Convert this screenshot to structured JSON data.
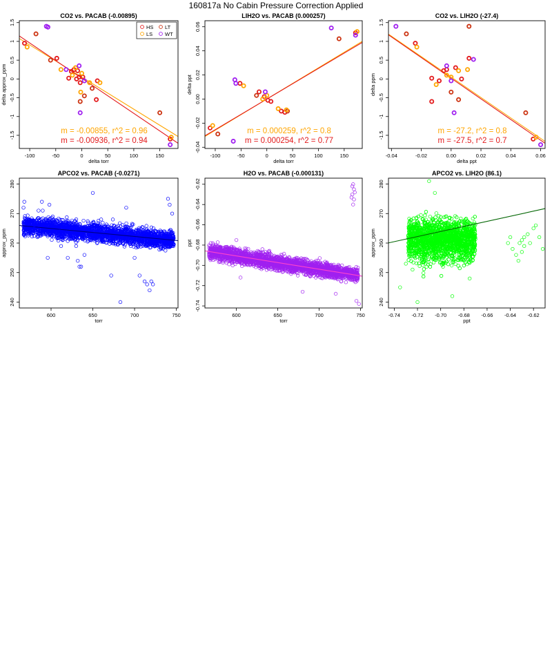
{
  "page": {
    "title": "160817a   No Cabin Pressure Correction Applied"
  },
  "legend": {
    "entries": [
      {
        "label": "HS",
        "color": "#e31a1c"
      },
      {
        "label": "LT",
        "color": "#cc3311"
      },
      {
        "label": "LS",
        "color": "#ffa500"
      },
      {
        "label": "WT",
        "color": "#a020f0"
      }
    ]
  },
  "chart_data": [
    {
      "type": "scatter",
      "title": "CO2 vs. PACAB (-0.00895)",
      "xlabel": "delta torr",
      "ylabel": "delta approx_ppm",
      "xlim": [
        -120,
        185
      ],
      "ylim": [
        -1.85,
        1.55
      ],
      "xticks": [
        -100,
        -50,
        0,
        50,
        100,
        150
      ],
      "yticks": [
        -1.5,
        -1.0,
        -0.5,
        0.0,
        0.5,
        1.0,
        1.5
      ],
      "ytick_labels": [
        "-1.5",
        "-1",
        "-0.5",
        "0",
        "0.5",
        "1",
        "1.5"
      ],
      "legend": "top-right",
      "fit_lines": [
        {
          "slope": -0.00855,
          "intercept": 0.05,
          "color": "#ffa500"
        },
        {
          "slope": -0.00936,
          "intercept": 0.02,
          "color": "#e31a1c"
        }
      ],
      "annotations": [
        {
          "text": "m = -0.00855, r^2 = 0.96",
          "color": "#ffa500"
        },
        {
          "text": "m = -0.00936, r^2 = 0.94",
          "color": "#e31a1c"
        }
      ],
      "series": [
        {
          "name": "HS",
          "color": "#e31a1c",
          "points": [
            [
              -110,
              0.95
            ],
            [
              -48,
              0.55
            ],
            [
              -20,
              0.2
            ],
            [
              -15,
              0.25
            ],
            [
              -8,
              0.22
            ],
            [
              -5,
              0.05
            ],
            [
              -10,
              0.0
            ],
            [
              2,
              0.05
            ],
            [
              30,
              -0.05
            ],
            [
              28,
              -0.55
            ],
            [
              170,
              -1.6
            ],
            [
              -25,
              0.02
            ],
            [
              -3,
              -0.1
            ]
          ]
        },
        {
          "name": "LT",
          "color": "#cc3311",
          "points": [
            [
              -88,
              1.2
            ],
            [
              -3,
              -0.6
            ],
            [
              5,
              -0.45
            ],
            [
              20,
              -0.25
            ],
            [
              150,
              -0.9
            ],
            [
              -60,
              0.5
            ]
          ]
        },
        {
          "name": "LS",
          "color": "#ffa500",
          "points": [
            [
              -105,
              0.85
            ],
            [
              -40,
              0.25
            ],
            [
              -12,
              0.3
            ],
            [
              -18,
              0.1
            ],
            [
              0,
              0.15
            ],
            [
              15,
              -0.1
            ],
            [
              35,
              -0.1
            ],
            [
              172,
              -1.55
            ],
            [
              -2,
              -0.35
            ]
          ]
        },
        {
          "name": "WT",
          "color": "#a020f0",
          "points": [
            [
              -68,
              1.4
            ],
            [
              -65,
              1.38
            ],
            [
              -5,
              0.35
            ],
            [
              -3,
              -0.9
            ],
            [
              5,
              -0.05
            ],
            [
              170,
              -1.75
            ],
            [
              -30,
              0.25
            ]
          ]
        }
      ]
    },
    {
      "type": "scatter",
      "title": "LIH2O vs. PACAB (0.000257)",
      "xlabel": "delta torr",
      "ylabel": "delta ppt",
      "xlim": [
        -120,
        185
      ],
      "ylim": [
        -0.041,
        0.065
      ],
      "xticks": [
        -100,
        -50,
        0,
        50,
        100,
        150
      ],
      "yticks": [
        -0.04,
        -0.02,
        0.0,
        0.02,
        0.04,
        0.06
      ],
      "ytick_labels": [
        "-0.04",
        "-0.02",
        "0.00",
        "0.02",
        "0.04",
        "0.06"
      ],
      "fit_lines": [
        {
          "slope": 0.000259,
          "intercept": 0.0,
          "color": "#ffa500"
        },
        {
          "slope": 0.000254,
          "intercept": 0.0,
          "color": "#e31a1c"
        }
      ],
      "annotations": [
        {
          "text": "m = 0.000259, r^2 = 0.8",
          "color": "#ffa500"
        },
        {
          "text": "m = 0.000254, r^2 = 0.77",
          "color": "#e31a1c"
        }
      ],
      "series": [
        {
          "name": "HS",
          "color": "#e31a1c",
          "points": [
            [
              -110,
              -0.024
            ],
            [
              -52,
              0.013
            ],
            [
              -15,
              0.006
            ],
            [
              -5,
              0.002
            ],
            [
              2,
              -0.001
            ],
            [
              8,
              -0.002
            ],
            [
              28,
              -0.01
            ],
            [
              35,
              -0.011
            ],
            [
              172,
              0.055
            ]
          ]
        },
        {
          "name": "LT",
          "color": "#cc3311",
          "points": [
            [
              -95,
              -0.029
            ],
            [
              -20,
              0.003
            ],
            [
              40,
              -0.01
            ],
            [
              140,
              0.05
            ]
          ]
        },
        {
          "name": "LS",
          "color": "#ffa500",
          "points": [
            [
              -105,
              -0.022
            ],
            [
              -45,
              0.011
            ],
            [
              -8,
              0.0
            ],
            [
              22,
              -0.008
            ],
            [
              38,
              -0.009
            ],
            [
              175,
              0.056
            ],
            [
              0,
              0.003
            ]
          ]
        },
        {
          "name": "WT",
          "color": "#a020f0",
          "points": [
            [
              -62,
              0.016
            ],
            [
              -60,
              0.013
            ],
            [
              -3,
              0.006
            ],
            [
              -65,
              -0.035
            ],
            [
              125,
              0.059
            ],
            [
              172,
              0.053
            ]
          ]
        }
      ]
    },
    {
      "type": "scatter",
      "title": "CO2 vs. LIH2O (-27.4)",
      "xlabel": "delta ppt",
      "ylabel": "delta ppm",
      "xlim": [
        -0.042,
        0.063
      ],
      "ylim": [
        -1.85,
        1.55
      ],
      "xticks": [
        -0.04,
        -0.02,
        0.0,
        0.02,
        0.04,
        0.06
      ],
      "xtick_labels": [
        "-0.04",
        "-0.02",
        "0.00",
        "0.02",
        "0.04",
        "0.06"
      ],
      "yticks": [
        -1.5,
        -1.0,
        -0.5,
        0.0,
        0.5,
        1.0,
        1.5
      ],
      "ytick_labels": [
        "-1.5",
        "-1",
        "-0.5",
        "0",
        "0.5",
        "1",
        "1.5"
      ],
      "fit_lines": [
        {
          "slope": -27.2,
          "intercept": 0.05,
          "color": "#ffa500"
        },
        {
          "slope": -27.5,
          "intercept": 0.02,
          "color": "#e31a1c"
        }
      ],
      "annotations": [
        {
          "text": "m = -27.2, r^2 = 0.8",
          "color": "#ffa500"
        },
        {
          "text": "m = -27.5, r^2 = 0.7",
          "color": "#e31a1c"
        }
      ],
      "series": [
        {
          "name": "HS",
          "color": "#e31a1c",
          "points": [
            [
              -0.024,
              0.95
            ],
            [
              -0.013,
              -0.6
            ],
            [
              -0.013,
              0.02
            ],
            [
              -0.005,
              0.22
            ],
            [
              -0.003,
              0.25
            ],
            [
              0.003,
              0.3
            ],
            [
              0.007,
              0.0
            ],
            [
              0.012,
              0.55
            ],
            [
              0.055,
              -1.6
            ],
            [
              -0.008,
              -0.05
            ]
          ]
        },
        {
          "name": "LT",
          "color": "#cc3311",
          "points": [
            [
              -0.03,
              1.2
            ],
            [
              0.012,
              1.4
            ],
            [
              0.0,
              -0.35
            ],
            [
              0.005,
              -0.55
            ],
            [
              0.05,
              -0.9
            ]
          ]
        },
        {
          "name": "LS",
          "color": "#ffa500",
          "points": [
            [
              -0.023,
              0.85
            ],
            [
              -0.01,
              -0.15
            ],
            [
              -0.003,
              0.1
            ],
            [
              0.005,
              0.22
            ],
            [
              0.011,
              0.25
            ],
            [
              0.057,
              -1.55
            ],
            [
              0.0,
              0.05
            ]
          ]
        },
        {
          "name": "WT",
          "color": "#a020f0",
          "points": [
            [
              -0.037,
              1.4
            ],
            [
              -0.003,
              0.35
            ],
            [
              0.002,
              -0.9
            ],
            [
              0.015,
              0.52
            ],
            [
              0.06,
              -1.75
            ],
            [
              0.0,
              -0.05
            ]
          ]
        }
      ]
    },
    {
      "type": "scatter",
      "title": "APCO2 vs. PACAB (-0.0271)",
      "xlabel": "torr",
      "ylabel": "approx_ppm",
      "xlim": [
        562,
        752
      ],
      "ylim": [
        238,
        282
      ],
      "xticks": [
        600,
        650,
        700,
        750
      ],
      "yticks": [
        240,
        250,
        260,
        270,
        280
      ],
      "color": "#0000ff",
      "fit_line": {
        "slope": -0.0271,
        "intercept": 281.2,
        "color": "#000080"
      },
      "band": {
        "slope": -0.0271,
        "intercept": 281.2,
        "halfwidth": 4.5
      },
      "series": [
        {
          "name": "",
          "color": "#0000ff",
          "points": [
            [
              567,
              272
            ],
            [
              568,
              274
            ],
            [
              572,
              268
            ],
            [
              580,
              266
            ],
            [
              585,
              271
            ],
            [
              589,
              274
            ],
            [
              590,
              271
            ],
            [
              598,
              273
            ],
            [
              596,
              255
            ],
            [
              602,
              269
            ],
            [
              610,
              264
            ],
            [
              612,
              259
            ],
            [
              620,
              255
            ],
            [
              630,
              259
            ],
            [
              632,
              254
            ],
            [
              634,
              252
            ],
            [
              636,
              252
            ],
            [
              640,
              256
            ],
            [
              650,
              277
            ],
            [
              660,
              268
            ],
            [
              672,
              249
            ],
            [
              674,
              268
            ],
            [
              683,
              240
            ],
            [
              690,
              272
            ],
            [
              700,
              255
            ],
            [
              706,
              249
            ],
            [
              712,
              247
            ],
            [
              715,
              246
            ],
            [
              718,
              244
            ],
            [
              720,
              247
            ],
            [
              722,
              246
            ],
            [
              740,
              275
            ],
            [
              742,
              273
            ],
            [
              745,
              270
            ]
          ]
        }
      ]
    },
    {
      "type": "scatter",
      "title": "H2O vs. PACAB (-0.000131)",
      "xlabel": "torr",
      "ylabel": "ppt",
      "xlim": [
        562,
        752
      ],
      "ylim": [
        -0.742,
        -0.614
      ],
      "xticks": [
        600,
        650,
        700,
        750
      ],
      "yticks": [
        -0.74,
        -0.72,
        -0.7,
        -0.68,
        -0.66,
        -0.64,
        -0.62
      ],
      "ytick_labels": [
        "-0.74",
        "-0.72",
        "-0.70",
        "-0.68",
        "-0.66",
        "-0.64",
        "-0.62"
      ],
      "color": "#a020f0",
      "fit_line": {
        "slope": -0.000131,
        "intercept": -0.6121,
        "color": "#ff44cc"
      },
      "band": {
        "slope": -0.000131,
        "intercept": -0.6121,
        "halfwidth": 0.011
      },
      "series": [
        {
          "name": "",
          "color": "#a020f0",
          "points": [
            [
              741,
              -0.62
            ],
            [
              742,
              -0.625
            ],
            [
              740,
              -0.63
            ],
            [
              742,
              -0.635
            ],
            [
              741,
              -0.64
            ],
            [
              743,
              -0.628
            ],
            [
              739,
              -0.633
            ],
            [
              740,
              -0.622
            ],
            [
              569,
              -0.678
            ],
            [
              575,
              -0.68
            ],
            [
              590,
              -0.695
            ],
            [
              605,
              -0.712
            ],
            [
              625,
              -0.7
            ],
            [
              680,
              -0.726
            ],
            [
              720,
              -0.728
            ],
            [
              745,
              -0.735
            ],
            [
              748,
              -0.738
            ],
            [
              600,
              -0.675
            ]
          ]
        }
      ]
    },
    {
      "type": "scatter",
      "title": "APCO2 vs. LIH2O (86.1)",
      "xlabel": "ppt",
      "ylabel": "approx_ppm",
      "xlim": [
        -0.745,
        -0.61
      ],
      "ylim": [
        238,
        282
      ],
      "xticks": [
        -0.74,
        -0.72,
        -0.7,
        -0.68,
        -0.66,
        -0.64,
        -0.62
      ],
      "xtick_labels": [
        "-0.74",
        "-0.72",
        "-0.70",
        "-0.68",
        "-0.66",
        "-0.64",
        "-0.62"
      ],
      "yticks": [
        240,
        250,
        260,
        270,
        280
      ],
      "color": "#00ff00",
      "fit_line": {
        "slope": 86.1,
        "intercept": 324.2,
        "color": "#006400"
      },
      "series": [
        {
          "name": "",
          "color": "#00ff00",
          "points": [
            [
              -0.638,
              258
            ],
            [
              -0.635,
              256
            ],
            [
              -0.632,
              260
            ],
            [
              -0.63,
              261
            ],
            [
              -0.628,
              259
            ],
            [
              -0.625,
              263
            ],
            [
              -0.623,
              260
            ],
            [
              -0.62,
              265
            ],
            [
              -0.618,
              266
            ],
            [
              -0.615,
              262
            ],
            [
              -0.633,
              254
            ],
            [
              -0.63,
              257
            ],
            [
              -0.642,
              260
            ],
            [
              -0.64,
              262
            ],
            [
              -0.628,
              262
            ],
            [
              -0.612,
              258
            ],
            [
              -0.72,
              240
            ],
            [
              -0.69,
              242
            ],
            [
              -0.675,
              248
            ],
            [
              -0.71,
              281
            ],
            [
              -0.705,
              277
            ],
            [
              -0.735,
              245
            ],
            [
              -0.73,
              253
            ]
          ]
        }
      ]
    }
  ]
}
